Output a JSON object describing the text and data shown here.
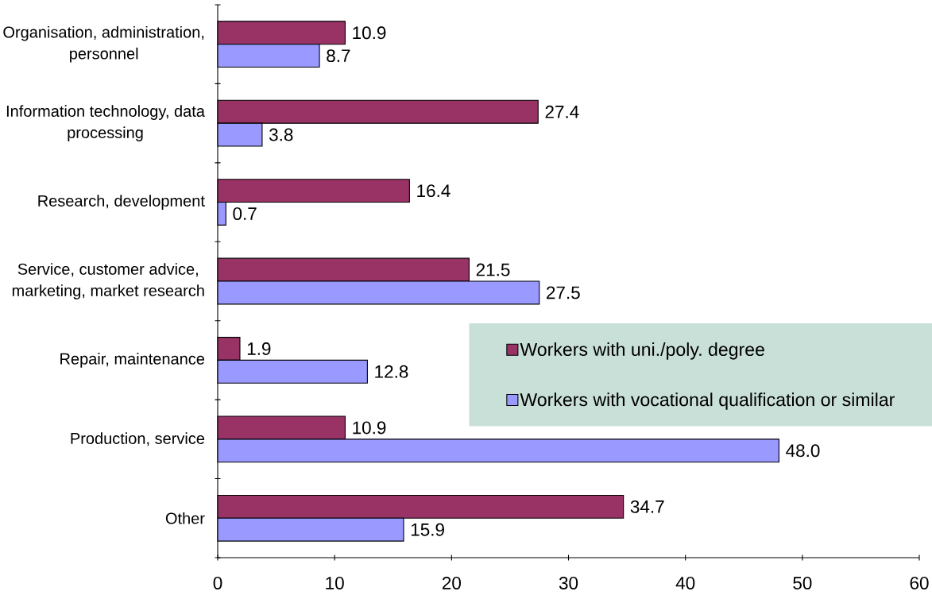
{
  "chart_data": {
    "type": "bar",
    "orientation": "horizontal",
    "categories": [
      "Organisation, administration, personnel",
      "Information technology, data processing",
      "Research, development",
      "Service, customer advice, marketing, market research",
      "Repair, maintenance",
      "Production, service",
      "Other"
    ],
    "series": [
      {
        "name": "Workers with uni./poly. degree",
        "color": "#993366",
        "values": [
          10.9,
          27.4,
          16.4,
          21.5,
          1.9,
          10.9,
          34.7
        ],
        "value_labels": [
          "10.9",
          "27.4",
          "16.4",
          "21.5",
          "1.9",
          "10.9",
          "34.7"
        ]
      },
      {
        "name": "Workers with vocational qualification or similar",
        "color": "#9999ff",
        "values": [
          8.7,
          3.8,
          0.7,
          27.5,
          12.8,
          48.0,
          15.9
        ],
        "value_labels": [
          "8.7",
          "3.8",
          "0.7",
          "27.5",
          "12.8",
          "48.0",
          "15.9"
        ]
      }
    ],
    "xlim": [
      0,
      60
    ],
    "xticks": [
      0,
      10,
      20,
      30,
      40,
      50,
      60
    ],
    "legend": "right",
    "grid": false
  }
}
